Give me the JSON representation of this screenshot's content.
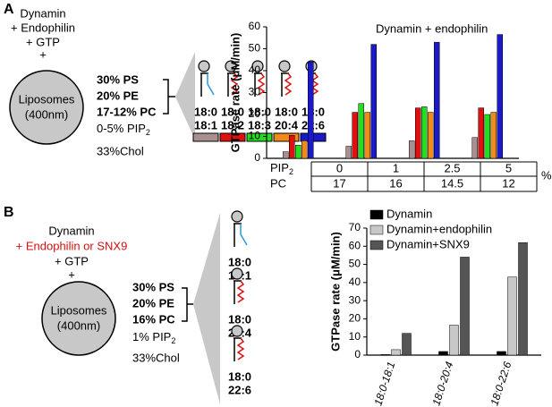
{
  "panel_a": {
    "label": "A",
    "conditions": [
      "Dynamin",
      "+ Endophilin",
      "+ GTP",
      "+"
    ],
    "liposome": [
      "Liposomes",
      "(400nm)"
    ],
    "lipids": [
      "30% PS",
      "20% PE",
      "17-12% PC"
    ],
    "pip2": {
      "text": "0-5% PIP",
      "sub": "2"
    },
    "chol": "33%Chol",
    "species": [
      [
        "18:0",
        "18:1"
      ],
      [
        "18:0",
        "18:2"
      ],
      [
        "18:0",
        "18:3"
      ],
      [
        "18:0",
        "20:4"
      ],
      [
        "18:0",
        "22:6"
      ]
    ]
  },
  "panel_b": {
    "label": "B",
    "conditions": [
      "Dynamin",
      "+ Endophilin or SNX9",
      "+ GTP",
      "+"
    ],
    "liposome": [
      "Liposomes",
      "(400nm)"
    ],
    "lipids": [
      "30% PS",
      "20% PE",
      "16% PC"
    ],
    "pip2": {
      "text": "1% PIP",
      "sub": "2"
    },
    "chol": "33%Chol",
    "species": [
      [
        "18:0",
        "18:1"
      ],
      [
        "18:0",
        "20:4"
      ],
      [
        "18:0",
        "22:6"
      ]
    ]
  },
  "chart_data": [
    {
      "type": "bar",
      "title": "Dynamin + endophilin",
      "y_label": "GTPase rate (μM/min)",
      "categories": [
        "0",
        "1",
        "2.5",
        "5"
      ],
      "x_label": {
        "text": "PIP",
        "sub": "2"
      },
      "x_unit": "%",
      "pc_label": "PC",
      "pc_values": [
        "17",
        "16",
        "14.5",
        "12"
      ],
      "series": [
        {
          "color": "#a89090",
          "values": [
            3,
            5.5,
            8,
            9.5
          ]
        },
        {
          "color": "#e01010",
          "values": [
            10.5,
            21,
            23,
            23
          ]
        },
        {
          "color": "#22dd22",
          "values": [
            6,
            25,
            23.5,
            20
          ]
        },
        {
          "color": "#f08a1a",
          "values": [
            8,
            21,
            21,
            21
          ]
        },
        {
          "color": "#1a1ac8",
          "values": [
            44,
            52,
            53,
            56.5
          ]
        }
      ],
      "ylim": [
        0,
        60
      ],
      "yticks": [
        0,
        10,
        20,
        30,
        40,
        50,
        60
      ]
    },
    {
      "type": "bar",
      "y_label": "GTPase rate (μM/min)",
      "categories": [
        "18:0-18:1",
        "18:0-20:4",
        "18:0-22:6"
      ],
      "series": [
        {
          "name": "Dynamin",
          "color": "#000000",
          "values": [
            0.3,
            2,
            2
          ]
        },
        {
          "name": "Dynamin+endophilin",
          "color": "#c8c8c8",
          "values": [
            3,
            16.5,
            43
          ]
        },
        {
          "name": "Dynamin+SNX9",
          "color": "#555555",
          "values": [
            12,
            54,
            62
          ]
        }
      ],
      "ylim": [
        0,
        70
      ],
      "yticks": [
        0,
        10,
        20,
        30,
        40,
        50,
        60,
        70
      ]
    }
  ]
}
